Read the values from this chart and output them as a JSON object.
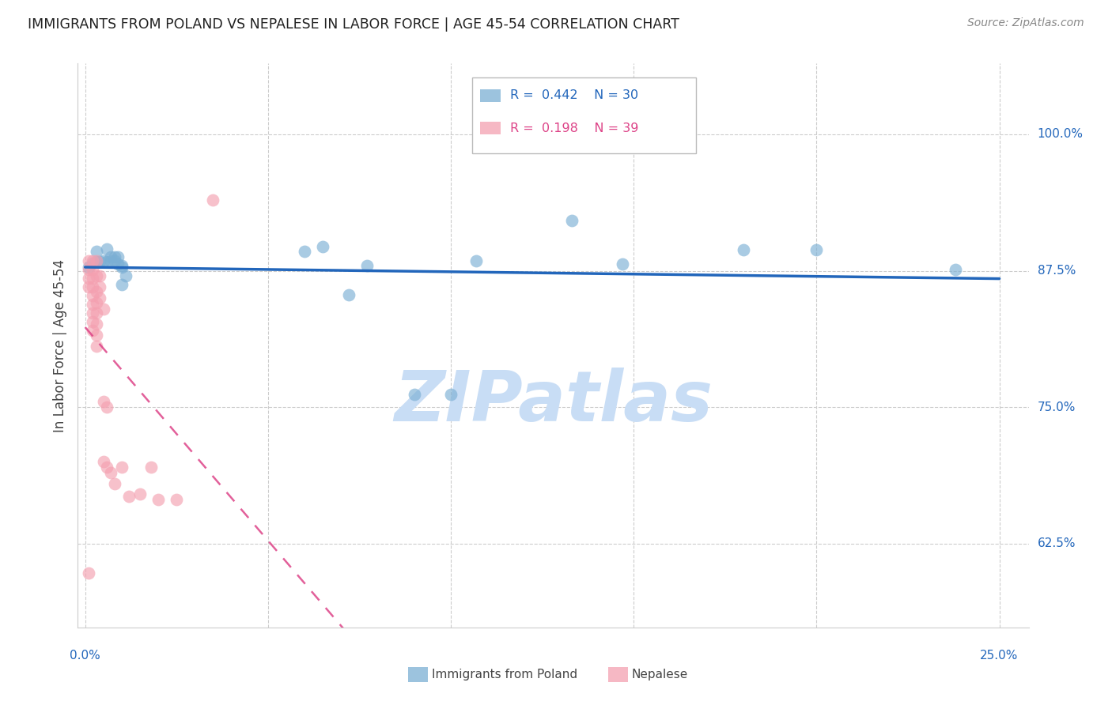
{
  "title": "IMMIGRANTS FROM POLAND VS NEPALESE IN LABOR FORCE | AGE 45-54 CORRELATION CHART",
  "source": "Source: ZipAtlas.com",
  "ylabel": "In Labor Force | Age 45-54",
  "ytick_values": [
    0.625,
    0.75,
    0.875,
    1.0
  ],
  "ytick_labels": [
    "62.5%",
    "75.0%",
    "87.5%",
    "100.0%"
  ],
  "xtick_values": [
    0.0,
    0.05,
    0.1,
    0.15,
    0.2,
    0.25
  ],
  "xlim": [
    -0.002,
    0.258
  ],
  "ylim": [
    0.548,
    1.065
  ],
  "poland_R": 0.442,
  "poland_N": 30,
  "nepal_R": 0.198,
  "nepal_N": 39,
  "poland_color": "#7BAFD4",
  "nepal_color": "#F4A0B0",
  "poland_line_color": "#2266BB",
  "nepal_line_color": "#DD4488",
  "watermark_color": "#C8DDF5",
  "poland_x": [
    0.001,
    0.002,
    0.003,
    0.003,
    0.004,
    0.005,
    0.006,
    0.006,
    0.007,
    0.007,
    0.008,
    0.008,
    0.009,
    0.009,
    0.01,
    0.01,
    0.01,
    0.011,
    0.06,
    0.065,
    0.072,
    0.077,
    0.09,
    0.1,
    0.107,
    0.133,
    0.147,
    0.18,
    0.2,
    0.238
  ],
  "poland_y": [
    0.878,
    0.882,
    0.883,
    0.893,
    0.883,
    0.884,
    0.883,
    0.895,
    0.884,
    0.888,
    0.884,
    0.888,
    0.881,
    0.888,
    0.862,
    0.88,
    0.878,
    0.87,
    0.893,
    0.897,
    0.853,
    0.88,
    0.762,
    0.762,
    0.884,
    0.921,
    0.881,
    0.894,
    0.894,
    0.876
  ],
  "nepal_x": [
    0.001,
    0.001,
    0.001,
    0.001,
    0.002,
    0.002,
    0.002,
    0.002,
    0.002,
    0.002,
    0.002,
    0.002,
    0.002,
    0.003,
    0.003,
    0.003,
    0.003,
    0.003,
    0.003,
    0.003,
    0.003,
    0.004,
    0.004,
    0.004,
    0.005,
    0.005,
    0.005,
    0.006,
    0.006,
    0.007,
    0.008,
    0.01,
    0.012,
    0.015,
    0.018,
    0.02,
    0.025,
    0.035,
    0.001
  ],
  "nepal_y": [
    0.884,
    0.876,
    0.868,
    0.86,
    0.884,
    0.876,
    0.868,
    0.86,
    0.852,
    0.844,
    0.836,
    0.828,
    0.82,
    0.884,
    0.87,
    0.856,
    0.846,
    0.836,
    0.826,
    0.816,
    0.806,
    0.87,
    0.86,
    0.85,
    0.84,
    0.755,
    0.7,
    0.75,
    0.695,
    0.69,
    0.68,
    0.695,
    0.668,
    0.67,
    0.695,
    0.665,
    0.665,
    0.94,
    0.598
  ],
  "legend_R_color": "#2266BB",
  "legend_N_color": "#2266BB",
  "legend_R2_color": "#DD4488",
  "legend_N2_color": "#DD4488"
}
